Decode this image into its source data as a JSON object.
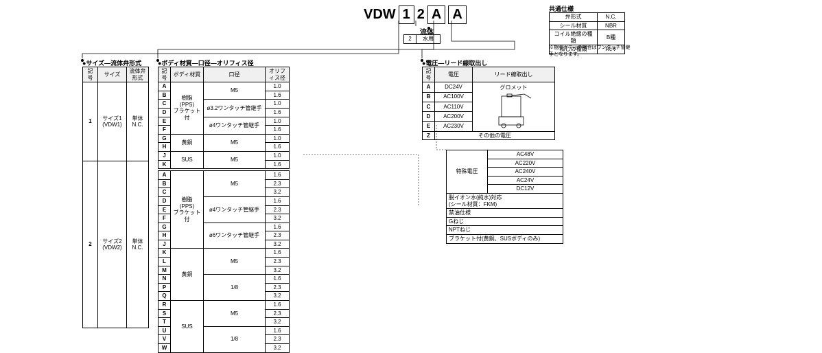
{
  "partNumber": {
    "prefix": "VDW",
    "slots": [
      "1",
      "2",
      "A",
      "A"
    ]
  },
  "fluid": {
    "label": "流体",
    "code": "2",
    "desc": "水用"
  },
  "commonSpec": {
    "title": "共通仕様",
    "rows": [
      [
        "弁形式",
        "N.C."
      ],
      [
        "シール材質",
        "NBR"
      ],
      [
        "コイル絶縁の種類",
        "B種"
      ],
      [
        "ねじの種類",
        "Rc※"
      ]
    ],
    "note": "※樹脂ボディの場合はワンタッチ管継手となります。"
  },
  "sizeSection": {
    "title": "サイズ―流体弁形式",
    "headers": [
      "記号",
      "サイズ",
      "流体弁形式"
    ],
    "rows": [
      {
        "code": "1",
        "size": "サイズ1\n(VDW1)",
        "type": "単体\nN.C."
      },
      {
        "code": "2",
        "size": "サイズ2\n(VDW2)",
        "type": "単体\nN.C."
      }
    ]
  },
  "bodySection": {
    "title": "ボディ材質―口径―オリフィス径",
    "headers": [
      "記号",
      "ボディ材質",
      "口径",
      "オリフィス径"
    ],
    "group1": [
      {
        "c": "A",
        "m": "樹脂\n(PPS)\nブラケット付",
        "p": "M5",
        "o": "1.0"
      },
      {
        "c": "B",
        "m": "",
        "p": "",
        "o": "1.6"
      },
      {
        "c": "C",
        "m": "",
        "p": "ø3.2ワンタッチ管継手",
        "o": "1.0"
      },
      {
        "c": "D",
        "m": "",
        "p": "",
        "o": "1.6"
      },
      {
        "c": "E",
        "m": "",
        "p": "ø4ワンタッチ管継手",
        "o": "1.0"
      },
      {
        "c": "F",
        "m": "",
        "p": "",
        "o": "1.6"
      },
      {
        "c": "G",
        "m": "黄銅",
        "p": "M5",
        "o": "1.0"
      },
      {
        "c": "H",
        "m": "",
        "p": "",
        "o": "1.6"
      },
      {
        "c": "J",
        "m": "SUS",
        "p": "M5",
        "o": "1.0"
      },
      {
        "c": "K",
        "m": "",
        "p": "",
        "o": "1.6"
      }
    ],
    "group2": [
      {
        "c": "A",
        "m": "樹脂\n(PPS)\nブラケット付",
        "p": "M5",
        "o": "1.6"
      },
      {
        "c": "B",
        "m": "",
        "p": "",
        "o": "2.3"
      },
      {
        "c": "C",
        "m": "",
        "p": "",
        "o": "3.2"
      },
      {
        "c": "D",
        "m": "",
        "p": "ø4ワンタッチ管継手",
        "o": "1.6"
      },
      {
        "c": "E",
        "m": "",
        "p": "",
        "o": "2.3"
      },
      {
        "c": "F",
        "m": "",
        "p": "",
        "o": "3.2"
      },
      {
        "c": "G",
        "m": "",
        "p": "ø6ワンタッチ管継手",
        "o": "1.6"
      },
      {
        "c": "H",
        "m": "",
        "p": "",
        "o": "2.3"
      },
      {
        "c": "J",
        "m": "",
        "p": "",
        "o": "3.2"
      },
      {
        "c": "K",
        "m": "黄銅",
        "p": "M5",
        "o": "1.6"
      },
      {
        "c": "L",
        "m": "",
        "p": "",
        "o": "2.3"
      },
      {
        "c": "M",
        "m": "",
        "p": "",
        "o": "3.2"
      },
      {
        "c": "N",
        "m": "",
        "p": "1/8",
        "o": "1.6"
      },
      {
        "c": "P",
        "m": "",
        "p": "",
        "o": "2.3"
      },
      {
        "c": "Q",
        "m": "",
        "p": "",
        "o": "3.2"
      },
      {
        "c": "R",
        "m": "SUS",
        "p": "M5",
        "o": "1.6"
      },
      {
        "c": "S",
        "m": "",
        "p": "",
        "o": "2.3"
      },
      {
        "c": "T",
        "m": "",
        "p": "",
        "o": "3.2"
      },
      {
        "c": "U",
        "m": "",
        "p": "1/8",
        "o": "1.6"
      },
      {
        "c": "V",
        "m": "",
        "p": "",
        "o": "2.3"
      },
      {
        "c": "W",
        "m": "",
        "p": "",
        "o": "3.2"
      }
    ]
  },
  "voltageSection": {
    "title": "電圧―リード線取出し",
    "headers": [
      "記号",
      "電圧",
      "リード線取出し"
    ],
    "rows": [
      {
        "c": "A",
        "v": "DC24V",
        "lead": "グロメット"
      },
      {
        "c": "B",
        "v": "AC100V",
        "lead": ""
      },
      {
        "c": "C",
        "v": "AC110V",
        "lead": ""
      },
      {
        "c": "D",
        "v": "AC200V",
        "lead": ""
      },
      {
        "c": "E",
        "v": "AC230V",
        "lead": ""
      },
      {
        "c": "Z",
        "v": "その他の電圧",
        "lead": ""
      }
    ]
  },
  "optionSection": {
    "specialVoltage": {
      "label": "特殊電圧",
      "values": [
        "AC48V",
        "AC220V",
        "AC240V",
        "AC24V",
        "DC12V"
      ]
    },
    "others": [
      "脱イオン水(純水)対応\n(シール材質：FKM)",
      "禁油仕様",
      "Gねじ",
      "NPTねじ",
      "ブラケット付(黄銅、SUSボディのみ)"
    ]
  }
}
